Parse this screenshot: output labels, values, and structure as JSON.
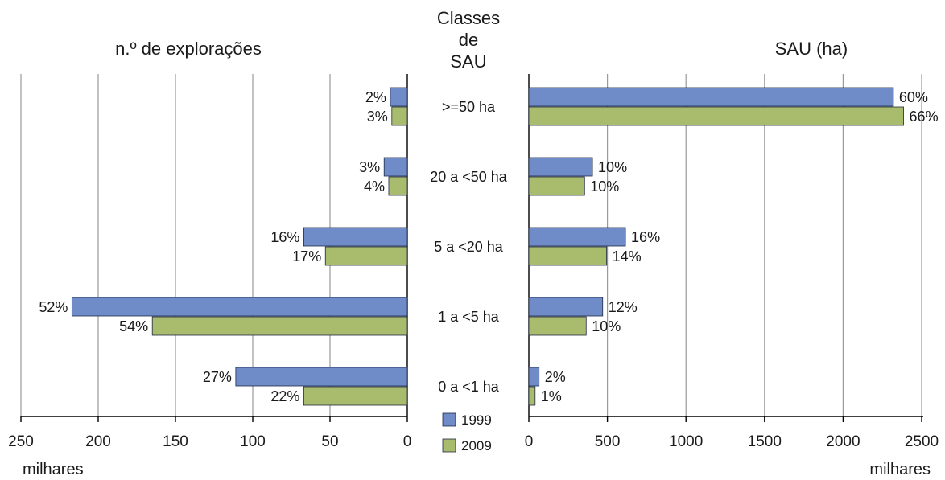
{
  "chart_data": {
    "type": "bar",
    "orientation": "horizontal",
    "layout": "back-to-back",
    "center_header": [
      "Classes",
      "de",
      "SAU"
    ],
    "categories": [
      ">=50 ha",
      "20 a <50 ha",
      "5 a <20 ha",
      "1 a <5 ha",
      "0 a <1 ha"
    ],
    "series_names": [
      "1999",
      "2009"
    ],
    "colors": {
      "1999": "#6f8cc9",
      "2009": "#a9bb6c"
    },
    "legend": {
      "position": "bottom-center",
      "items": [
        {
          "label": "1999",
          "color": "#6f8cc9"
        },
        {
          "label": "2009",
          "color": "#a9bb6c"
        }
      ]
    },
    "panels": [
      {
        "id": "left",
        "title": "n.º de explorações",
        "unit_label": "milhares",
        "direction": "reversed",
        "xlim": [
          0,
          250
        ],
        "ticks": [
          250,
          200,
          150,
          100,
          50,
          0
        ],
        "grid": true,
        "series": [
          {
            "name": "1999",
            "values": [
              11,
              15,
              67,
              217,
              111
            ],
            "labels": [
              "2%",
              "3%",
              "16%",
              "52%",
              "27%"
            ]
          },
          {
            "name": "2009",
            "values": [
              10,
              12,
              53,
              165,
              67
            ],
            "labels": [
              "3%",
              "4%",
              "17%",
              "54%",
              "22%"
            ]
          }
        ]
      },
      {
        "id": "right",
        "title": "SAU (ha)",
        "unit_label": "milhares",
        "direction": "normal",
        "xlim": [
          0,
          2500
        ],
        "ticks": [
          0,
          500,
          1000,
          1500,
          2000,
          2500
        ],
        "grid": true,
        "series": [
          {
            "name": "1999",
            "values": [
              2320,
              405,
              615,
              470,
              65
            ],
            "labels": [
              "60%",
              "10%",
              "16%",
              "12%",
              "2%"
            ]
          },
          {
            "name": "2009",
            "values": [
              2385,
              355,
              495,
              365,
              40
            ],
            "labels": [
              "66%",
              "10%",
              "14%",
              "10%",
              "1%"
            ]
          }
        ]
      }
    ]
  }
}
